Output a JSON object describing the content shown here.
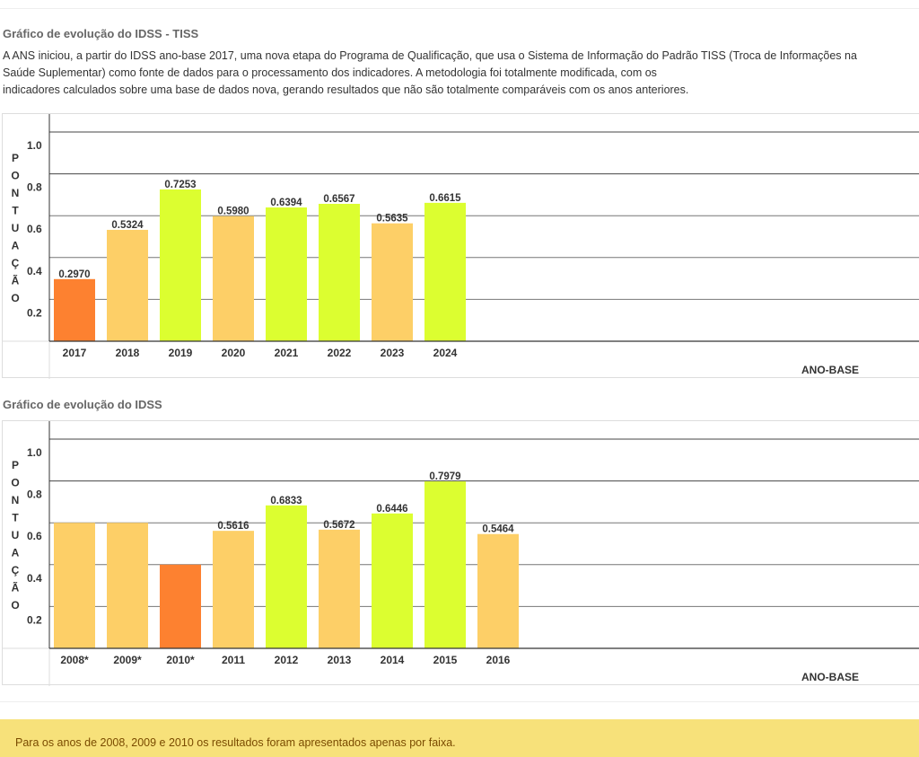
{
  "section1": {
    "title": "Gráfico de evolução do IDSS - TISS",
    "intro_lines": [
      "A ANS iniciou, a partir do IDSS ano-base 2017, uma nova etapa do Programa de Qualificação, que usa o Sistema de Informação do Padrão TISS (Troca de Informações na",
      "Saúde Suplementar) como fonte de dados para o processamento dos indicadores. A metodologia foi totalmente modificada, com os",
      "indicadores calculados sobre uma base de dados nova, gerando resultados que não são totalmente comparáveis com os anos anteriores."
    ]
  },
  "section2": {
    "title": "Gráfico de evolução do IDSS"
  },
  "note": {
    "text": "Para os anos de 2008, 2009 e 2010 os resultados foram apresentados apenas por faixa."
  },
  "colors": {
    "orange": "#fd8130",
    "light_orange": "#fdcf67",
    "lime": "#dcfe30",
    "note_bg": "#f7e17a"
  },
  "chart_data": [
    {
      "type": "bar",
      "title": "Gráfico de evolução do IDSS - TISS",
      "xlabel": "ANO-BASE",
      "ylabel": "PONTUAÇÃO",
      "ylim": [
        0,
        1.0
      ],
      "yticks": [
        "1.0",
        "0.8",
        "0.6",
        "0.4",
        "0.2"
      ],
      "grid": true,
      "categories": [
        "2017",
        "2018",
        "2019",
        "2020",
        "2021",
        "2022",
        "2023",
        "2024"
      ],
      "values": [
        0.297,
        0.5324,
        0.7253,
        0.598,
        0.6394,
        0.6567,
        0.5635,
        0.6615
      ],
      "labels": [
        "0.2970",
        "0.5324",
        "0.7253",
        "0.5980",
        "0.6394",
        "0.6567",
        "0.5635",
        "0.6615"
      ],
      "bar_colors": [
        "orange",
        "light_orange",
        "lime",
        "light_orange",
        "lime",
        "lime",
        "light_orange",
        "lime"
      ]
    },
    {
      "type": "bar",
      "title": "Gráfico de evolução do IDSS",
      "xlabel": "ANO-BASE",
      "ylabel": "PONTUAÇÃO",
      "ylim": [
        0,
        1.0
      ],
      "yticks": [
        "1.0",
        "0.8",
        "0.6",
        "0.4",
        "0.2"
      ],
      "grid": true,
      "categories": [
        "2008*",
        "2009*",
        "2010*",
        "2011",
        "2012",
        "2013",
        "2014",
        "2015",
        "2016"
      ],
      "values": [
        0.6,
        0.6,
        0.4,
        0.5616,
        0.6833,
        0.5672,
        0.6446,
        0.7979,
        0.5464
      ],
      "labels": [
        "",
        "",
        "",
        "0.5616",
        "0.6833",
        "0.5672",
        "0.6446",
        "0.7979",
        "0.5464"
      ],
      "bar_colors": [
        "light_orange",
        "light_orange",
        "orange",
        "light_orange",
        "lime",
        "light_orange",
        "lime",
        "lime",
        "light_orange"
      ]
    }
  ]
}
